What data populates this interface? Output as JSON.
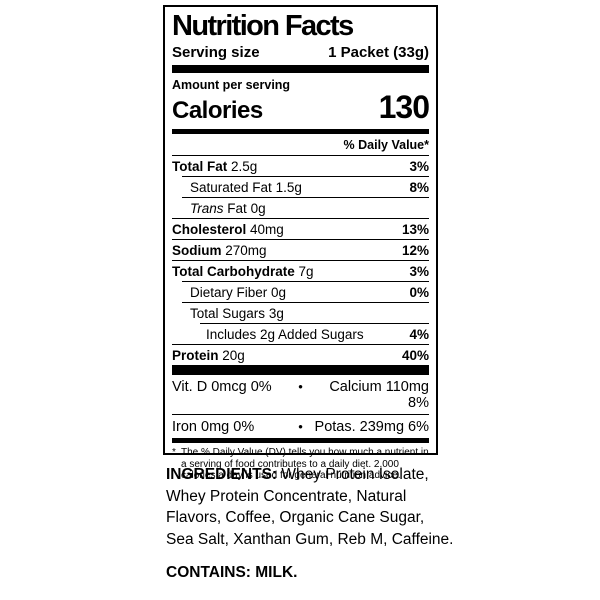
{
  "colors": {
    "text": "#000000",
    "background": "#ffffff"
  },
  "label": {
    "title": "Nutrition Facts",
    "serving": {
      "label": "Serving size",
      "value": "1 Packet (33g)"
    },
    "amount_per_serving": "Amount per serving",
    "calories": {
      "label": "Calories",
      "value": "130"
    },
    "daily_value_header": "% Daily Value*",
    "rows": [
      {
        "label": "Total Fat",
        "amount": "2.5g",
        "dv": "3%"
      },
      {
        "label": "Saturated Fat",
        "amount": "1.5g",
        "dv": "8%"
      },
      {
        "label_italic": "Trans",
        "label": "Fat",
        "amount": "0g",
        "dv": ""
      },
      {
        "label": "Cholesterol",
        "amount": "40mg",
        "dv": "13%"
      },
      {
        "label": "Sodium",
        "amount": "270mg",
        "dv": "12%"
      },
      {
        "label": "Total Carbohydrate",
        "amount": "7g",
        "dv": "3%"
      },
      {
        "label": "Dietary Fiber",
        "amount": "0g",
        "dv": "0%"
      },
      {
        "label": "Total Sugars",
        "amount": "3g",
        "dv": ""
      },
      {
        "label": "Includes 2g Added Sugars",
        "amount": "",
        "dv": "4%"
      },
      {
        "label": "Protein",
        "amount": "20g",
        "dv": "40%"
      }
    ],
    "micronutrients": [
      {
        "left": "Vit. D 0mcg 0%",
        "bullet": "•",
        "right": "Calcium 110mg 8%"
      },
      {
        "left": "Iron 0mg 0%",
        "bullet": "•",
        "right": "Potas. 239mg 6%"
      }
    ],
    "footnote": {
      "marker": "*",
      "text": "The % Daily Value (DV) tells you how much a nutrient in a serving of food contributes to a daily diet. 2,000 calories a day is used for general nutrition advice."
    }
  },
  "ingredients": {
    "heading": "INGREDIENTS:",
    "text": "Whey Protein Isolate, Whey Protein Concentrate, Natural Flavors, Coffee, Organic Cane Sugar, Sea Salt, Xanthan Gum, Reb M, Caffeine.",
    "contains": "CONTAINS: MILK."
  }
}
